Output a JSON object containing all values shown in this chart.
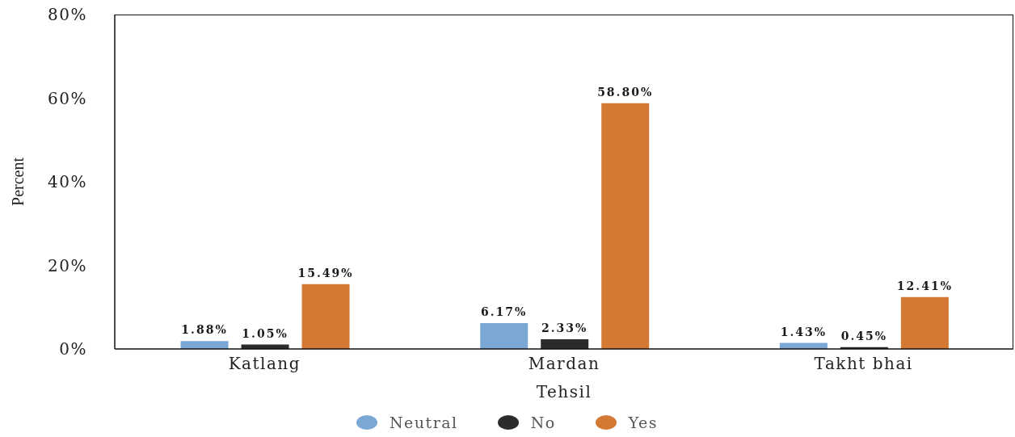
{
  "chart_data": {
    "type": "bar",
    "xlabel": "Tehsil",
    "ylabel": "Percent",
    "categories": [
      "Katlang",
      "Mardan",
      "Takht bhai"
    ],
    "series": [
      {
        "name": "Neutral",
        "color": "#7ba7d4",
        "values": [
          1.88,
          6.17,
          1.43
        ],
        "value_labels": [
          "1.88%",
          "6.17%",
          "1.43%"
        ]
      },
      {
        "name": "No",
        "color": "#2b2b29",
        "values": [
          1.05,
          2.33,
          0.45
        ],
        "value_labels": [
          "1.05%",
          "2.33%",
          "0.45%"
        ]
      },
      {
        "name": "Yes",
        "color": "#d47934",
        "values": [
          15.49,
          58.8,
          12.41
        ],
        "value_labels": [
          "15.49%",
          "58.80%",
          "12.41%"
        ]
      }
    ],
    "ylim": [
      0,
      80
    ],
    "yticks": [
      {
        "value": 0,
        "label": "0%"
      },
      {
        "value": 20,
        "label": "20%"
      },
      {
        "value": 40,
        "label": "40%"
      },
      {
        "value": 60,
        "label": "60%"
      },
      {
        "value": 80,
        "label": "80%"
      }
    ],
    "grid": false,
    "legend": "bottom"
  }
}
